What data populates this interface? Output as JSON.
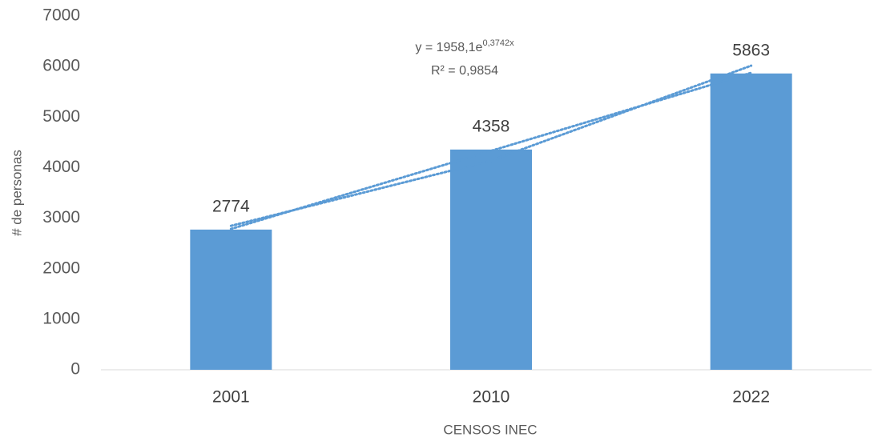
{
  "chart_data": {
    "type": "bar",
    "categories": [
      "2001",
      "2010",
      "2022"
    ],
    "values": [
      2774,
      4358,
      5863
    ],
    "color": "#5b9bd5",
    "ylim": [
      0,
      7000
    ],
    "yticks": [
      0,
      1000,
      2000,
      3000,
      4000,
      5000,
      6000,
      7000
    ],
    "grid": false,
    "x_label": "CENSOS INEC",
    "y_label": "# de personas",
    "trendlines": [
      {
        "kind": "exponential",
        "values": [
          2848,
          4139,
          6017
        ]
      },
      {
        "kind": "linear",
        "values": [
          2787,
          4332,
          5876
        ]
      }
    ],
    "annotation": {
      "equation": "y = 1958,1e",
      "exponent": "0,3742x",
      "r2": "R² = 0,9854"
    }
  }
}
